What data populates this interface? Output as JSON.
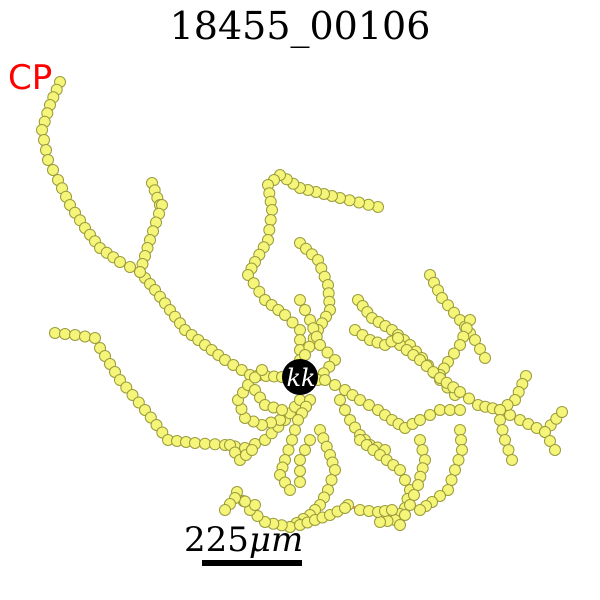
{
  "title": "18455_00106",
  "cp_label": "CP",
  "soma_label": "kk",
  "scale": {
    "value": "225",
    "unit": "μm"
  },
  "colors": {
    "edge": "#f08070",
    "node_fill": "#f5f57a",
    "node_stroke": "#9a9a3a",
    "soma": "#000000",
    "cp_text": "#ff0000"
  }
}
